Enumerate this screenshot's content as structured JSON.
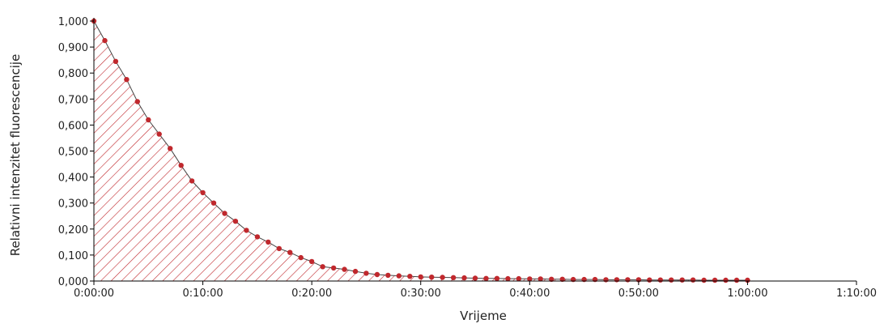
{
  "chart_data": {
    "type": "area",
    "title": "",
    "xlabel": "Vrijeme",
    "ylabel": "Relativni intenzitet fluorescencije",
    "x_unit": "minutes",
    "xlim": [
      0,
      70
    ],
    "ylim": [
      0,
      1
    ],
    "x_ticks": [
      0,
      10,
      20,
      30,
      40,
      50,
      60,
      70
    ],
    "x_tick_labels": [
      "0:00:00",
      "0:10:00",
      "0:20:00",
      "0:30:00",
      "0:40:00",
      "0:50:00",
      "1:00:00",
      "1:10:00"
    ],
    "y_ticks": [
      0,
      0.1,
      0.2,
      0.3,
      0.4,
      0.5,
      0.6,
      0.7,
      0.8,
      0.9,
      1.0
    ],
    "y_tick_labels": [
      "0,000",
      "0,100",
      "0,200",
      "0,300",
      "0,400",
      "0,500",
      "0,600",
      "0,700",
      "0,800",
      "0,900",
      "1,000"
    ],
    "grid": false,
    "legend": "none",
    "fill_pattern": "diagonal-hatch",
    "colors": {
      "line": "#444444",
      "marker": "#c0282d",
      "hatch": "#c0282d",
      "axis": "#000000"
    },
    "series": [
      {
        "x": [
          0,
          1,
          2,
          3,
          4,
          5,
          6,
          7,
          8,
          9,
          10,
          11,
          12,
          13,
          14,
          15,
          16,
          17,
          18,
          19,
          20,
          21,
          22,
          23,
          24,
          25,
          26,
          27,
          28,
          29,
          30,
          31,
          32,
          33,
          34,
          35,
          36,
          37,
          38,
          39,
          40,
          41,
          42,
          43,
          44,
          45,
          46,
          47,
          48,
          49,
          50,
          51,
          52,
          53,
          54,
          55,
          56,
          57,
          58,
          59,
          60
        ],
        "values": [
          1.0,
          0.925,
          0.845,
          0.775,
          0.69,
          0.62,
          0.565,
          0.51,
          0.445,
          0.385,
          0.34,
          0.3,
          0.26,
          0.23,
          0.195,
          0.17,
          0.15,
          0.125,
          0.11,
          0.09,
          0.075,
          0.055,
          0.05,
          0.045,
          0.037,
          0.03,
          0.025,
          0.022,
          0.02,
          0.018,
          0.016,
          0.015,
          0.014,
          0.013,
          0.012,
          0.011,
          0.01,
          0.01,
          0.009,
          0.009,
          0.008,
          0.008,
          0.007,
          0.007,
          0.006,
          0.006,
          0.006,
          0.005,
          0.005,
          0.005,
          0.005,
          0.004,
          0.004,
          0.004,
          0.004,
          0.004,
          0.003,
          0.003,
          0.003,
          0.003,
          0.003
        ]
      }
    ]
  }
}
